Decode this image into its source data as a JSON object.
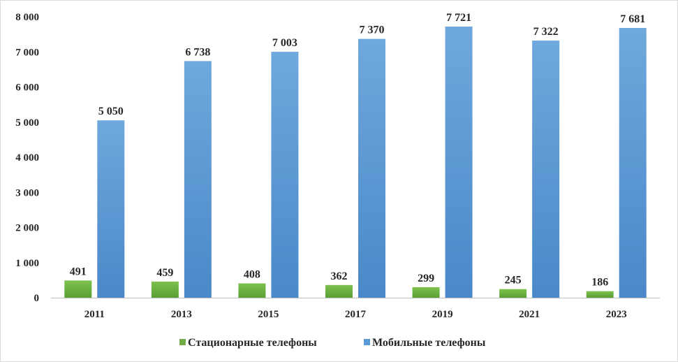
{
  "chart_data": {
    "type": "bar",
    "categories": [
      "2011",
      "2013",
      "2015",
      "2017",
      "2019",
      "2021",
      "2023"
    ],
    "series": [
      {
        "name": "Стационарные телефоны",
        "values": [
          491,
          459,
          408,
          362,
          299,
          245,
          186
        ],
        "labels": [
          "491",
          "459",
          "408",
          "362",
          "299",
          "245",
          "186"
        ],
        "color": "#70ad47"
      },
      {
        "name": "Мобильные телефоны",
        "values": [
          5050,
          6738,
          7003,
          7370,
          7721,
          7322,
          7681
        ],
        "labels": [
          "5 050",
          "6 738",
          "7 003",
          "7 370",
          "7 721",
          "7 322",
          "7 681"
        ],
        "color": "#5b9bd5"
      }
    ],
    "yticks": [
      {
        "value": 0,
        "label": "0"
      },
      {
        "value": 1000,
        "label": "1 000"
      },
      {
        "value": 2000,
        "label": "2 000"
      },
      {
        "value": 3000,
        "label": "3 000"
      },
      {
        "value": 4000,
        "label": "4 000"
      },
      {
        "value": 5000,
        "label": "5 000"
      },
      {
        "value": 6000,
        "label": "6 000"
      },
      {
        "value": 7000,
        "label": "7 000"
      },
      {
        "value": 8000,
        "label": "8 000"
      }
    ],
    "ylim": [
      0,
      8000
    ],
    "grid": false,
    "legend_position": "bottom",
    "title": "",
    "xlabel": "",
    "ylabel": ""
  }
}
